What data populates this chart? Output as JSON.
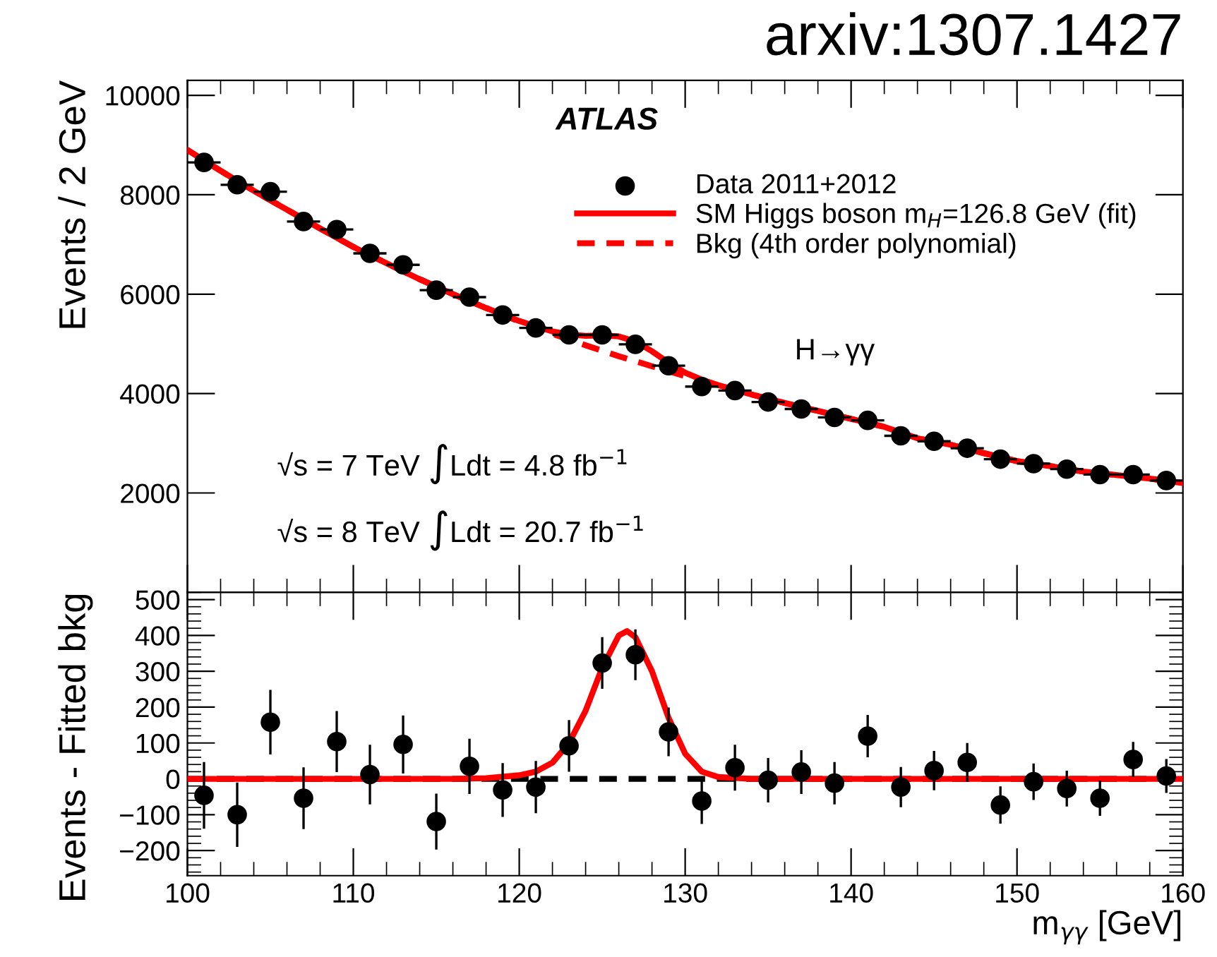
{
  "chart_data": [
    {
      "type": "scatter",
      "title": "arxiv:1307.1427",
      "ylabel": "Events / 2 GeV",
      "xlim": [
        100,
        160
      ],
      "xticks": [
        {
          "value": 100,
          "label": null
        },
        {
          "value": 110,
          "label": null
        },
        {
          "value": 120,
          "label": null
        },
        {
          "value": 130,
          "label": null
        },
        {
          "value": 140,
          "label": null
        },
        {
          "value": 150,
          "label": null
        },
        {
          "value": 160,
          "label": null
        }
      ],
      "ylim": [
        0,
        10300
      ],
      "yticks": [
        2000,
        4000,
        6000,
        8000,
        10000
      ],
      "tick_labels": "y",
      "legend": "top right",
      "grid": false,
      "annotations": [
        "ATLAS",
        "H→γγ",
        "√s = 7 TeV ∫Ldt = 4.8 fb$^{−1}$",
        "√s = 8 TeV ∫Ldt = 20.7 fb$^{−1}$"
      ],
      "series": [
        {
          "name": "Data 2011+2012",
          "type": "scatter",
          "marker": "circle",
          "color": "#000000",
          "x": [
            101,
            103,
            105,
            107,
            109,
            111,
            113,
            115,
            117,
            119,
            121,
            123,
            125,
            127,
            129,
            131,
            133,
            135,
            137,
            139,
            141,
            143,
            145,
            147,
            149,
            151,
            153,
            155,
            157,
            159
          ],
          "values": [
            8650,
            8200,
            8060,
            7460,
            7300,
            6820,
            6590,
            6080,
            5940,
            5580,
            5320,
            5180,
            5180,
            4990,
            4560,
            4140,
            4060,
            3830,
            3690,
            3520,
            3460,
            3150,
            3040,
            2900,
            2680,
            2590,
            2480,
            2370,
            2370,
            2250
          ],
          "xerrors": [
            1,
            1,
            1,
            1,
            1,
            1,
            1,
            1,
            1,
            1,
            1,
            1,
            1,
            1,
            1,
            1,
            1,
            1,
            1,
            1,
            1,
            1,
            1,
            1,
            1,
            1,
            1,
            1,
            1,
            1
          ]
        },
        {
          "name": "SM Higgs boson m$_{H}$=126.8 GeV (fit)",
          "type": "line",
          "line_style": "solid",
          "color": "#ff0000",
          "x": [
            100,
            102,
            104,
            106,
            108,
            110,
            112,
            114,
            116,
            118,
            120,
            121,
            122,
            123,
            124,
            125,
            126,
            127,
            128,
            129,
            130,
            131,
            132,
            134,
            136,
            138,
            140,
            142,
            144,
            146,
            148,
            150,
            152,
            154,
            156,
            158,
            160
          ],
          "values": [
            8900,
            8480,
            8080,
            7700,
            7320,
            6950,
            6620,
            6300,
            6000,
            5720,
            5460,
            5350,
            5250,
            5190,
            5160,
            5170,
            5150,
            5050,
            4850,
            4620,
            4420,
            4280,
            4170,
            3980,
            3810,
            3650,
            3490,
            3330,
            3100,
            2970,
            2800,
            2640,
            2540,
            2430,
            2360,
            2290,
            2200
          ]
        },
        {
          "name": "Bkg (4th order polynomial)",
          "type": "line",
          "line_style": "dashed",
          "color": "#ff0000",
          "x": [
            100,
            102,
            104,
            106,
            108,
            110,
            112,
            114,
            116,
            118,
            120,
            122,
            124,
            126,
            128,
            130,
            132,
            134,
            136,
            138,
            140,
            142,
            144,
            146,
            148,
            150,
            152,
            154,
            156,
            158,
            160
          ],
          "values": [
            8900,
            8480,
            8080,
            7700,
            7320,
            6950,
            6620,
            6300,
            6000,
            5720,
            5450,
            5200,
            4970,
            4750,
            4550,
            4350,
            4160,
            3980,
            3810,
            3650,
            3490,
            3330,
            3100,
            2970,
            2800,
            2640,
            2540,
            2430,
            2360,
            2290,
            2200
          ]
        }
      ]
    },
    {
      "type": "scatter",
      "xlabel": "m$_{γγ}$ [GeV]",
      "ylabel": "Events - Fitted bkg",
      "xlim": [
        100,
        160
      ],
      "xticks": [
        100,
        110,
        120,
        130,
        140,
        150,
        160
      ],
      "ylim": [
        -270,
        520
      ],
      "yticks": [
        {
          "value": -200,
          "label": "−200"
        },
        {
          "value": -100,
          "label": "−100"
        },
        0,
        100,
        200,
        300,
        400,
        500
      ],
      "grid": false,
      "series": [
        {
          "type": "line",
          "line_style": "dashed",
          "color": "#000000",
          "x": [
            100,
            160
          ],
          "values": [
            0,
            0
          ]
        },
        {
          "type": "line",
          "line_style": "solid",
          "color": "#ff0000",
          "x": [
            100,
            110,
            116,
            118,
            120,
            121,
            122,
            123,
            124,
            125,
            126,
            126.5,
            127,
            128,
            129,
            130,
            131,
            132,
            134,
            140,
            160
          ],
          "values": [
            0,
            0,
            0,
            2,
            10,
            20,
            45,
            100,
            190,
            310,
            400,
            412,
            395,
            300,
            170,
            70,
            20,
            5,
            0,
            0,
            0
          ]
        },
        {
          "type": "scatter",
          "marker": "circle",
          "color": "#000000",
          "x": [
            101,
            103,
            105,
            107,
            109,
            111,
            113,
            115,
            117,
            119,
            121,
            123,
            125,
            127,
            129,
            131,
            133,
            135,
            137,
            139,
            141,
            143,
            145,
            147,
            149,
            151,
            153,
            155,
            157,
            159
          ],
          "values": [
            -46,
            -100,
            158,
            -54,
            104,
            12,
            96,
            -119,
            35,
            -31,
            -23,
            92,
            323,
            346,
            131,
            -62,
            31,
            -4,
            19,
            -12,
            119,
            -23,
            23,
            46,
            -73,
            -8,
            -27,
            -54,
            54,
            8
          ],
          "errors": [
            93,
            90,
            90,
            86,
            85,
            83,
            81,
            78,
            77,
            75,
            73,
            72,
            72,
            71,
            68,
            64,
            64,
            62,
            61,
            59,
            59,
            56,
            55,
            54,
            52,
            51,
            50,
            49,
            49,
            47
          ]
        }
      ]
    }
  ]
}
